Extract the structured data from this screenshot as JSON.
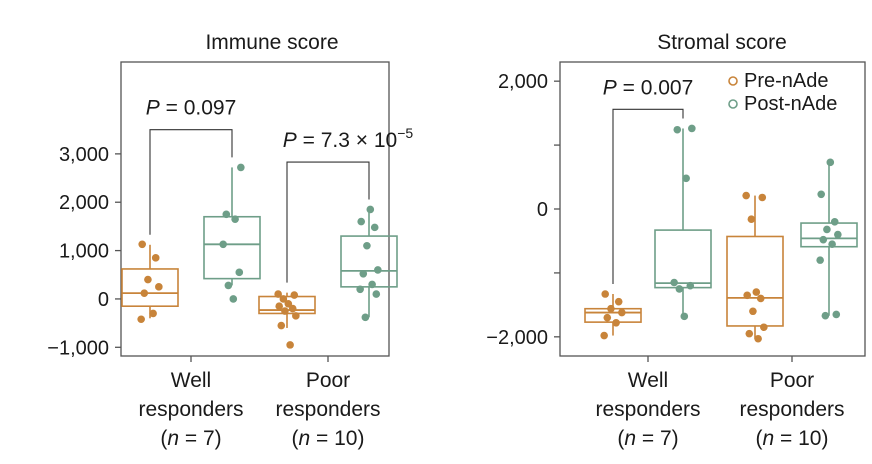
{
  "colors": {
    "pre": "#C8843A",
    "post": "#6E9E88"
  },
  "legend": {
    "pre_label": "Pre-nAde",
    "post_label": "Post-nAde"
  },
  "categories": [
    {
      "line1": "Well",
      "line2": "responders",
      "line3": "(n = 7)"
    },
    {
      "line1": "Poor",
      "line2": "responders",
      "line3": "(n = 10)"
    }
  ],
  "chart_data": [
    {
      "type": "box",
      "title": "Immune score",
      "yticks": [
        3000,
        2000,
        1000,
        0,
        -1000
      ],
      "ytick_labels": [
        "3,000",
        "2,000",
        "1,000",
        "0",
        "−1,000"
      ],
      "ylim": [
        -1180,
        4900
      ],
      "groups": [
        {
          "category": "Well responders",
          "series": "Pre-nAde",
          "q1": -150,
          "median": 120,
          "q3": 620,
          "whisker_low": -400,
          "whisker_high": 1120,
          "points": [
            1130,
            850,
            400,
            250,
            120,
            -300,
            -420
          ]
        },
        {
          "category": "Well responders",
          "series": "Post-nAde",
          "q1": 420,
          "median": 1130,
          "q3": 1700,
          "whisker_low": 280,
          "whisker_high": 2720,
          "points": [
            2720,
            1750,
            1650,
            1130,
            550,
            280,
            0
          ]
        },
        {
          "category": "Poor responders",
          "series": "Pre-nAde",
          "q1": -300,
          "median": -230,
          "q3": 50,
          "whisker_low": -600,
          "whisker_high": 130,
          "points": [
            100,
            80,
            0,
            -100,
            -150,
            -200,
            -250,
            -350,
            -550,
            -950
          ]
        },
        {
          "category": "Poor responders",
          "series": "Post-nAde",
          "q1": 250,
          "median": 580,
          "q3": 1300,
          "whisker_low": -380,
          "whisker_high": 1850,
          "points": [
            1850,
            1600,
            1480,
            1100,
            600,
            520,
            300,
            200,
            100,
            -380
          ]
        }
      ],
      "comparisons": [
        {
          "category": "Well responders",
          "label_prefix": "P",
          "label_value": " = 0.097",
          "label_exp": "",
          "bracket_y": 3500
        },
        {
          "category": "Poor responders",
          "label_prefix": "P",
          "label_value": " = 7.3 × 10",
          "label_exp": "−5",
          "bracket_y": 2830
        }
      ]
    },
    {
      "type": "box",
      "title": "Stromal score",
      "yticks": [
        2000,
        0,
        -2000
      ],
      "ytick_labels": [
        "2,000",
        "0",
        "−2,000"
      ],
      "ylim": [
        -2300,
        2300
      ],
      "groups": [
        {
          "category": "Well responders",
          "series": "Pre-nAde",
          "q1": -1770,
          "median": -1620,
          "q3": -1560,
          "whisker_low": -1980,
          "whisker_high": -1330,
          "points": [
            -1330,
            -1450,
            -1560,
            -1620,
            -1700,
            -1780,
            -1980
          ]
        },
        {
          "category": "Well responders",
          "series": "Post-nAde",
          "q1": -1230,
          "median": -1160,
          "q3": -330,
          "whisker_low": -1680,
          "whisker_high": 1260,
          "points": [
            1260,
            1240,
            480,
            -1150,
            -1200,
            -1250,
            -1680
          ]
        },
        {
          "category": "Poor responders",
          "series": "Pre-nAde",
          "q1": -1830,
          "median": -1390,
          "q3": -430,
          "whisker_low": -2030,
          "whisker_high": 210,
          "points": [
            210,
            180,
            -160,
            -1300,
            -1350,
            -1400,
            -1600,
            -1850,
            -1950,
            -2030
          ]
        },
        {
          "category": "Poor responders",
          "series": "Post-nAde",
          "q1": -590,
          "median": -460,
          "q3": -220,
          "whisker_low": -1670,
          "whisker_high": 730,
          "points": [
            730,
            230,
            -200,
            -320,
            -400,
            -480,
            -550,
            -800,
            -1650,
            -1670
          ]
        }
      ],
      "comparisons": [
        {
          "category": "Well responders",
          "label_prefix": "P",
          "label_value": " = 0.007",
          "label_exp": "",
          "bracket_y": 1560
        }
      ]
    }
  ]
}
